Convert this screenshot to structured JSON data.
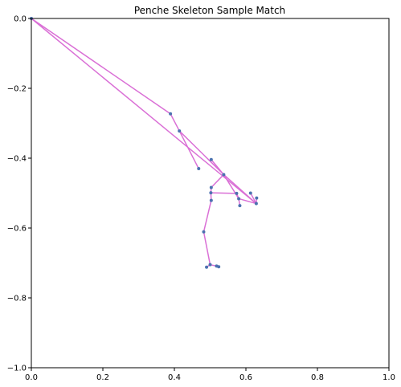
{
  "chart_data": {
    "type": "scatter",
    "title": "Penche Skeleton Sample Match",
    "xlabel": "",
    "ylabel": "",
    "xlim": [
      0,
      1
    ],
    "ylim": [
      -1,
      0
    ],
    "grid": false,
    "x_ticks": [
      {
        "value": 0.0,
        "label": "0.0"
      },
      {
        "value": 0.2,
        "label": "0.2"
      },
      {
        "value": 0.4,
        "label": "0.4"
      },
      {
        "value": 0.6,
        "label": "0.6"
      },
      {
        "value": 0.8,
        "label": "0.8"
      },
      {
        "value": 1.0,
        "label": "1.0"
      }
    ],
    "y_ticks": [
      {
        "value": 0.0,
        "label": "0.0"
      },
      {
        "value": -0.2,
        "label": "−0.2"
      },
      {
        "value": -0.4,
        "label": "−0.4"
      },
      {
        "value": -0.6,
        "label": "−0.6"
      },
      {
        "value": -0.8,
        "label": "−0.8"
      },
      {
        "value": -1.0,
        "label": "−1.0"
      }
    ],
    "colors": {
      "line": "#da70d6",
      "marker": "#4c72b0"
    },
    "points": [
      {
        "x": 0.0,
        "y": 0.0
      },
      {
        "x": 0.389,
        "y": -0.273
      },
      {
        "x": 0.414,
        "y": -0.322
      },
      {
        "x": 0.468,
        "y": -0.43
      },
      {
        "x": 0.503,
        "y": -0.404
      },
      {
        "x": 0.538,
        "y": -0.447
      },
      {
        "x": 0.503,
        "y": -0.484
      },
      {
        "x": 0.502,
        "y": -0.499
      },
      {
        "x": 0.503,
        "y": -0.521
      },
      {
        "x": 0.574,
        "y": -0.501
      },
      {
        "x": 0.58,
        "y": -0.516
      },
      {
        "x": 0.583,
        "y": -0.536
      },
      {
        "x": 0.613,
        "y": -0.5
      },
      {
        "x": 0.63,
        "y": -0.514
      },
      {
        "x": 0.629,
        "y": -0.53
      },
      {
        "x": 0.482,
        "y": -0.611
      },
      {
        "x": 0.5,
        "y": -0.705
      },
      {
        "x": 0.49,
        "y": -0.712
      },
      {
        "x": 0.518,
        "y": -0.709
      },
      {
        "x": 0.524,
        "y": -0.711
      }
    ],
    "segments": [
      [
        0,
        14
      ],
      [
        0,
        1
      ],
      [
        1,
        2
      ],
      [
        2,
        3
      ],
      [
        2,
        5
      ],
      [
        4,
        5
      ],
      [
        5,
        10
      ],
      [
        10,
        11
      ],
      [
        5,
        14
      ],
      [
        14,
        12
      ],
      [
        13,
        14
      ],
      [
        5,
        6
      ],
      [
        6,
        7
      ],
      [
        7,
        8
      ],
      [
        7,
        9
      ],
      [
        9,
        10
      ],
      [
        10,
        14
      ],
      [
        8,
        15
      ],
      [
        15,
        16
      ],
      [
        16,
        17
      ],
      [
        16,
        18
      ],
      [
        18,
        19
      ]
    ]
  }
}
